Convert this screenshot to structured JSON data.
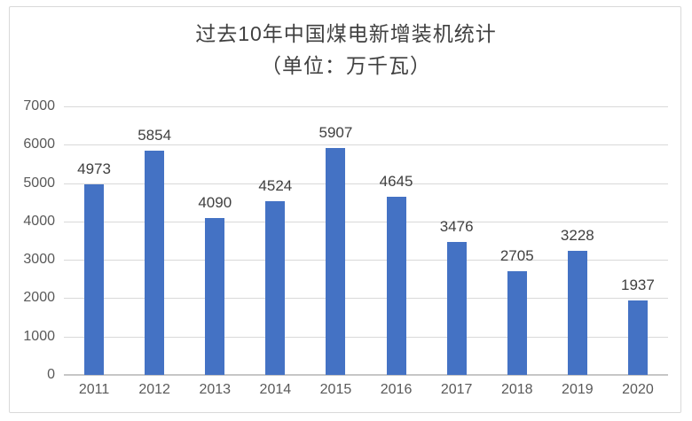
{
  "chart_data": {
    "type": "bar",
    "title": "过去10年中国煤电新增装机统计",
    "subtitle": "（单位：万千瓦）",
    "categories": [
      "2011",
      "2012",
      "2013",
      "2014",
      "2015",
      "2016",
      "2017",
      "2018",
      "2019",
      "2020"
    ],
    "values": [
      4973,
      5854,
      4090,
      4524,
      5907,
      4645,
      3476,
      2705,
      3228,
      1937
    ],
    "ylim": [
      0,
      7000
    ],
    "yticks": [
      0,
      1000,
      2000,
      3000,
      4000,
      5000,
      6000,
      7000
    ],
    "grid": true,
    "legend": "none",
    "data_labels": true,
    "colors": {
      "bar": "#4472C4",
      "gridline": "#D9D9D9",
      "axis_line": "#C6C6C6",
      "tick_label": "#595959",
      "data_label": "#404040",
      "title": "#404040",
      "frame_border": "#D9D9D9",
      "background": "#FFFFFF"
    }
  }
}
